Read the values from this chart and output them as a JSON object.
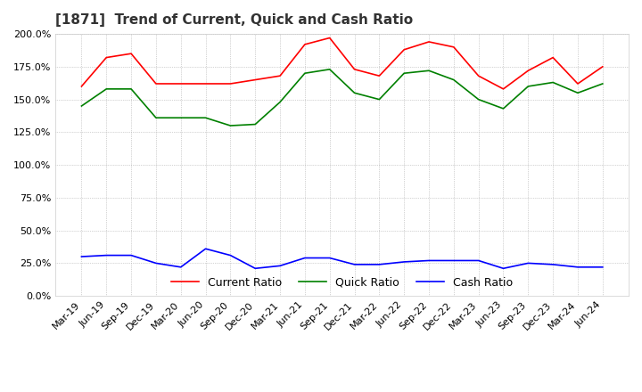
{
  "title": "[1871]  Trend of Current, Quick and Cash Ratio",
  "x_labels": [
    "Mar-19",
    "Jun-19",
    "Sep-19",
    "Dec-19",
    "Mar-20",
    "Jun-20",
    "Sep-20",
    "Dec-20",
    "Mar-21",
    "Jun-21",
    "Sep-21",
    "Dec-21",
    "Mar-22",
    "Jun-22",
    "Sep-22",
    "Dec-22",
    "Mar-23",
    "Jun-23",
    "Sep-23",
    "Dec-23",
    "Mar-24",
    "Jun-24"
  ],
  "current_ratio": [
    160,
    182,
    185,
    162,
    162,
    162,
    162,
    165,
    168,
    192,
    197,
    173,
    168,
    188,
    194,
    190,
    168,
    158,
    172,
    182,
    162,
    175
  ],
  "quick_ratio": [
    145,
    158,
    158,
    136,
    136,
    136,
    130,
    131,
    148,
    170,
    173,
    155,
    150,
    170,
    172,
    165,
    150,
    143,
    160,
    163,
    155,
    162
  ],
  "cash_ratio": [
    30,
    31,
    31,
    25,
    22,
    36,
    31,
    21,
    23,
    29,
    29,
    24,
    24,
    26,
    27,
    27,
    27,
    21,
    25,
    24,
    22,
    22
  ],
  "current_color": "#FF0000",
  "quick_color": "#008000",
  "cash_color": "#0000FF",
  "ylim": [
    0,
    200
  ],
  "yticks": [
    0,
    25,
    50,
    75,
    100,
    125,
    150,
    175,
    200
  ],
  "background_color": "#FFFFFF",
  "grid_color": "#AAAAAA",
  "title_fontsize": 11,
  "label_fontsize": 8,
  "legend_fontsize": 9
}
